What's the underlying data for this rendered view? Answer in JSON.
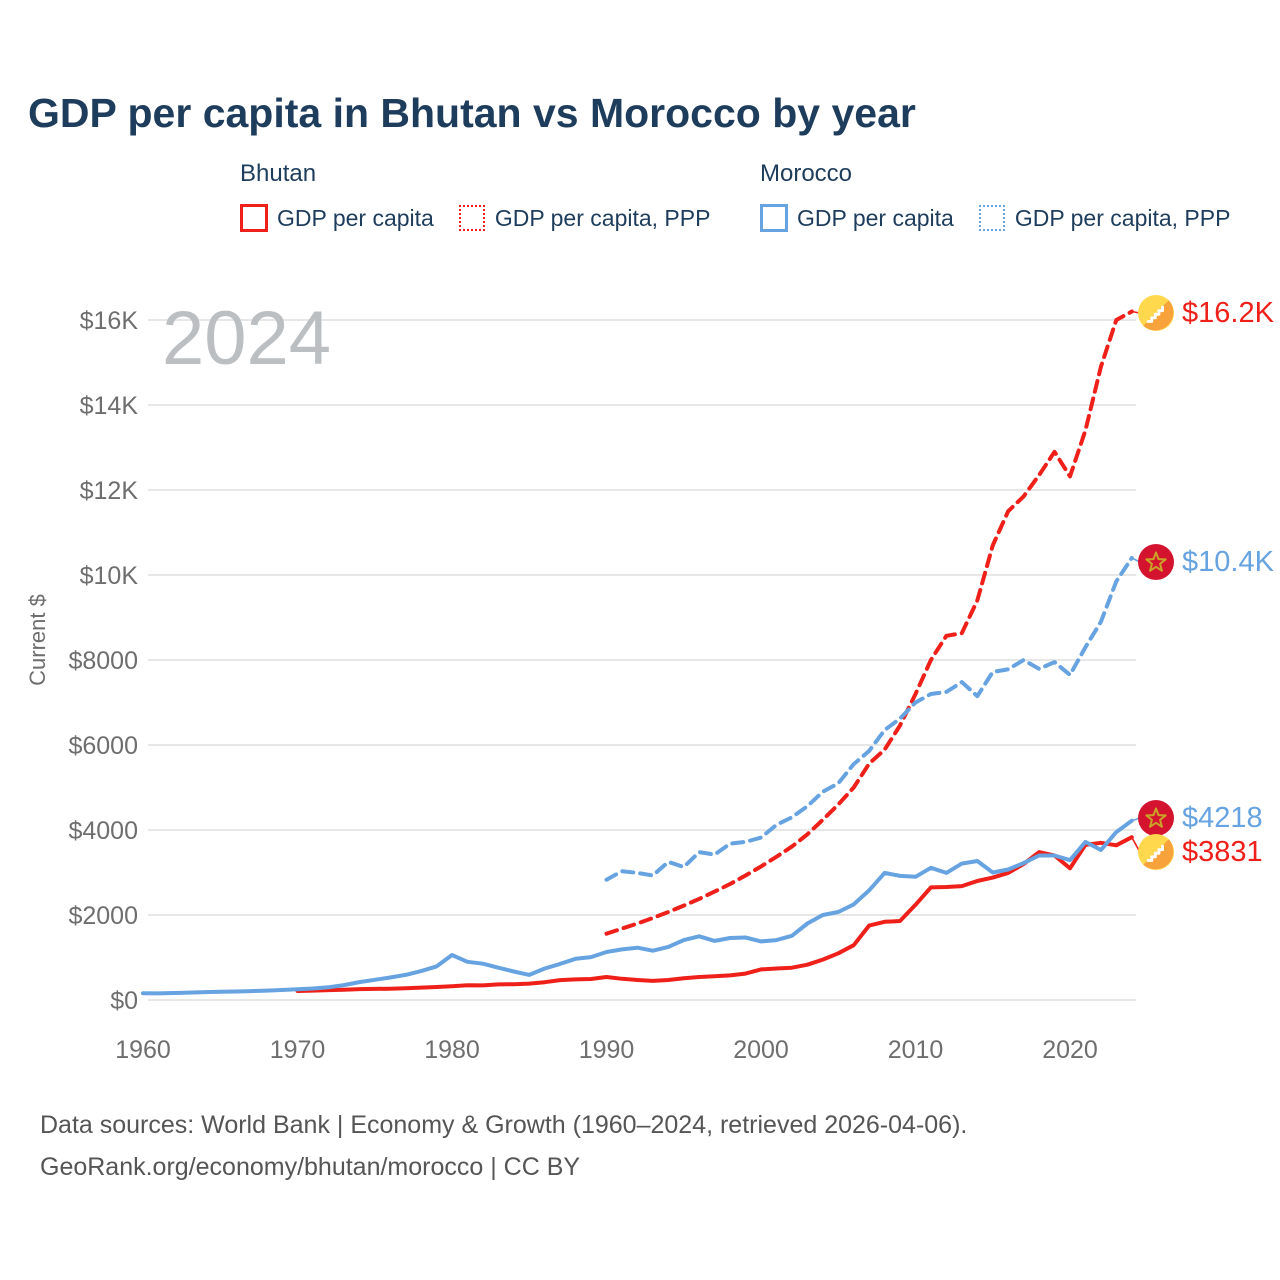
{
  "title": "GDP per capita in Bhutan vs Morocco by year",
  "watermark": "2024",
  "colors": {
    "bhutan": "#ee2019",
    "morocco": "#66a3e0",
    "navy": "#1e3d5c",
    "tick": "#6e6e6e",
    "grid": "#e7e7e7",
    "watermark": "#bcbfc2",
    "footer": "#555555",
    "bhutan_flag_yellow": "#ffd84d",
    "bhutan_flag_orange": "#f8a23b",
    "morocco_flag_red": "#d4142f",
    "morocco_flag_star": "#c9a227"
  },
  "legend": {
    "groups": [
      {
        "label": "Bhutan",
        "color": "#ee2019",
        "items": [
          {
            "label": "GDP per capita",
            "style": "solid"
          },
          {
            "label": "GDP per capita, PPP",
            "style": "dotted"
          }
        ]
      },
      {
        "label": "Morocco",
        "color": "#66a3e0",
        "items": [
          {
            "label": "GDP per capita",
            "style": "solid"
          },
          {
            "label": "GDP per capita, PPP",
            "style": "dotted"
          }
        ]
      }
    ]
  },
  "chart_data": {
    "type": "line",
    "title": "GDP per capita in Bhutan vs Morocco by year",
    "xlabel": "",
    "ylabel": "Current $",
    "xlim": [
      1958,
      2026
    ],
    "ylim": [
      0,
      16500
    ],
    "grid": true,
    "legend_position": "top",
    "x_ticks": [
      1960,
      1970,
      1980,
      1990,
      2000,
      2010,
      2020
    ],
    "y_ticks": [
      {
        "value": 0,
        "label": "$0"
      },
      {
        "value": 2000,
        "label": "$2000"
      },
      {
        "value": 4000,
        "label": "$4000"
      },
      {
        "value": 6000,
        "label": "$6000"
      },
      {
        "value": 8000,
        "label": "$8000"
      },
      {
        "value": 10000,
        "label": "$10K"
      },
      {
        "value": 12000,
        "label": "$12K"
      },
      {
        "value": 14000,
        "label": "$14K"
      },
      {
        "value": 16000,
        "label": "$16K"
      }
    ],
    "series": [
      {
        "name": "Bhutan GDP per capita",
        "country": "Bhutan",
        "color": "#ee2019",
        "dash": "solid",
        "end_label": "$3831",
        "start_year": 1970,
        "values": [
          212,
          222,
          232,
          243,
          256,
          262,
          267,
          278,
          292,
          306,
          325,
          346,
          344,
          368,
          372,
          387,
          418,
          468,
          484,
          495,
          540,
          500,
          470,
          450,
          470,
          510,
          540,
          560,
          580,
          620,
          720,
          740,
          760,
          830,
          950,
          1100,
          1290,
          1750,
          1840,
          1860,
          2240,
          2650,
          2660,
          2680,
          2800,
          2880,
          2990,
          3200,
          3480,
          3400,
          3100,
          3650,
          3700,
          3640,
          3831
        ]
      },
      {
        "name": "Bhutan GDP per capita, PPP",
        "country": "Bhutan",
        "color": "#ee2019",
        "dash": "dashed",
        "end_label": "$16.2K",
        "start_year": 1990,
        "values": [
          1560,
          1680,
          1800,
          1930,
          2070,
          2220,
          2380,
          2550,
          2730,
          2930,
          3140,
          3370,
          3610,
          3900,
          4240,
          4600,
          5000,
          5560,
          5890,
          6460,
          7200,
          8000,
          8570,
          8630,
          9400,
          10700,
          11500,
          11850,
          12350,
          12900,
          12320,
          13400,
          14900,
          16000,
          16200
        ]
      },
      {
        "name": "Morocco GDP per capita",
        "country": "Morocco",
        "color": "#66a3e0",
        "dash": "solid",
        "end_label": "$4218",
        "start_year": 1960,
        "values": [
          160,
          155,
          165,
          175,
          185,
          195,
          200,
          210,
          222,
          235,
          255,
          270,
          300,
          350,
          420,
          475,
          530,
          590,
          680,
          790,
          1060,
          900,
          855,
          760,
          670,
          590,
          740,
          850,
          970,
          1010,
          1130,
          1190,
          1230,
          1160,
          1250,
          1410,
          1500,
          1390,
          1460,
          1470,
          1380,
          1410,
          1510,
          1800,
          2000,
          2070,
          2250,
          2580,
          2990,
          2920,
          2900,
          3110,
          2990,
          3210,
          3270,
          3000,
          3070,
          3220,
          3400,
          3400,
          3290,
          3720,
          3530,
          3950,
          4218
        ]
      },
      {
        "name": "Morocco GDP per capita, PPP",
        "country": "Morocco",
        "color": "#66a3e0",
        "dash": "dashed",
        "end_label": "$10.4K",
        "start_year": 1990,
        "values": [
          2830,
          3030,
          2990,
          2930,
          3250,
          3130,
          3480,
          3420,
          3680,
          3720,
          3820,
          4120,
          4300,
          4560,
          4900,
          5100,
          5550,
          5860,
          6350,
          6620,
          7000,
          7200,
          7250,
          7480,
          7150,
          7720,
          7780,
          8000,
          7790,
          7950,
          7650,
          8300,
          8900,
          9850,
          10400
        ]
      }
    ]
  },
  "footer": {
    "line1": "Data sources: World Bank | Economy & Growth (1960–2024, retrieved 2026-04-06).",
    "line2": "GeoRank.org/economy/bhutan/morocco | CC BY"
  }
}
